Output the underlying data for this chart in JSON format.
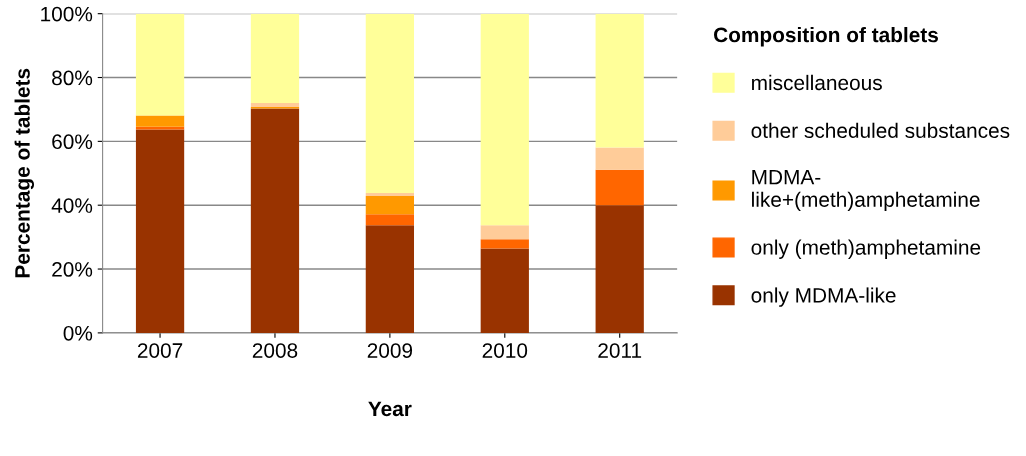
{
  "chart_data": {
    "type": "bar",
    "stacked": true,
    "xlabel": "Year",
    "ylabel": "Percentage of tablets",
    "legend_title": "Composition of tablets",
    "categories": [
      "2007",
      "2008",
      "2009",
      "2010",
      "2011"
    ],
    "series": [
      {
        "name": "only MDMA-like",
        "color": "#993300",
        "values": [
          63.7,
          70.3,
          33.7,
          26.4,
          40.0
        ]
      },
      {
        "name": "only (meth)amphetamine",
        "color": "#ff6600",
        "values": [
          0.9,
          0,
          3.5,
          2.9,
          11.1
        ]
      },
      {
        "name": "MDMA-\nlike+(meth)amphetamine",
        "color": "#ff9900",
        "values": [
          3.5,
          0.5,
          5.7,
          0,
          0
        ]
      },
      {
        "name": "other scheduled substances",
        "color": "#ffcc99",
        "values": [
          0,
          1.2,
          0.9,
          4.4,
          7.0
        ]
      },
      {
        "name": "miscellaneous",
        "color": "#ffff99",
        "values": [
          31.9,
          28.0,
          56.2,
          66.3,
          41.9
        ]
      }
    ],
    "ylim": [
      0,
      100
    ],
    "yticks": [
      {
        "value": 0,
        "label": "0%"
      },
      {
        "value": 20,
        "label": "20%"
      },
      {
        "value": 40,
        "label": "40%"
      },
      {
        "value": 60,
        "label": "60%"
      },
      {
        "value": 80,
        "label": "80%"
      },
      {
        "value": 100,
        "label": "100%"
      }
    ],
    "grid": "y",
    "legend": "right"
  }
}
